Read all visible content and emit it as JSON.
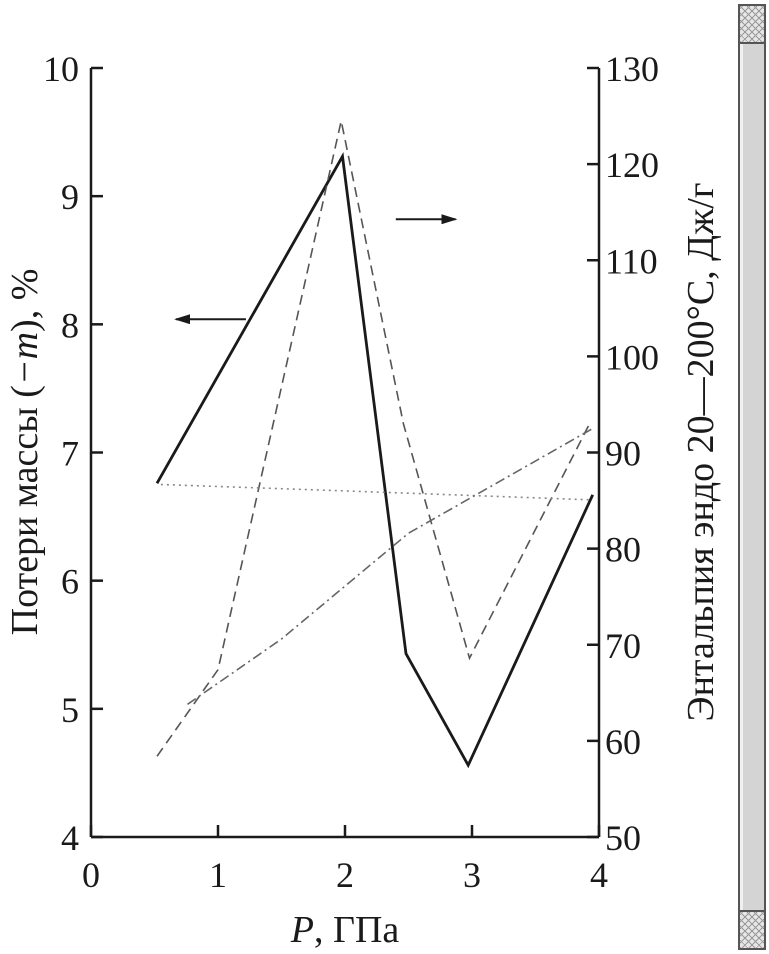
{
  "chart_data": {
    "type": "line",
    "xlabel_var": "P",
    "xlabel_unit": ", ГПа",
    "ylabel_left_pre": "Потери массы (",
    "ylabel_left_var": "−m",
    "ylabel_left_post": "), %",
    "ylabel_right": "Энтальпия эндо 20—200°С, Дж/г",
    "xlim": [
      0,
      4
    ],
    "ylim_left": [
      4,
      10
    ],
    "ylim_right": [
      50,
      130
    ],
    "x_ticks": [
      "0",
      "1",
      "2",
      "3",
      "4"
    ],
    "y_left_ticks": [
      "4",
      "5",
      "6",
      "7",
      "8",
      "9",
      "10"
    ],
    "y_right_ticks": [
      "50",
      "60",
      "70",
      "80",
      "90",
      "100",
      "110",
      "120",
      "130"
    ],
    "grid": false,
    "series": [
      {
        "axis": "left",
        "style": "solid",
        "color": "#1a1a1a",
        "x": [
          0.52,
          1.98,
          2.48,
          2.97,
          3.95
        ],
        "y": [
          6.76,
          9.31,
          5.43,
          4.56,
          6.67
        ]
      },
      {
        "axis": "right",
        "style": "dashed",
        "color": "#555555",
        "x": [
          0.52,
          1.0,
          1.97,
          2.46,
          2.98,
          3.93
        ],
        "y": [
          58.4,
          67.4,
          124.5,
          93.0,
          68.6,
          93.1
        ]
      },
      {
        "axis": "left",
        "style": "dotted",
        "color": "#888888",
        "x": [
          0.55,
          2.0,
          3.95
        ],
        "y": [
          6.75,
          6.7,
          6.63
        ]
      },
      {
        "axis": "right",
        "style": "dashdot",
        "color": "#666666",
        "x": [
          0.76,
          1.5,
          2.5,
          3.95
        ],
        "y": [
          63.8,
          70.6,
          81.6,
          92.5
        ]
      }
    ],
    "annotations": [
      {
        "type": "arrow",
        "direction": "left",
        "x_from": 1.22,
        "x_to": 0.67,
        "y": 8.04,
        "axis": "left"
      },
      {
        "type": "arrow",
        "direction": "right",
        "x_from": 2.4,
        "x_to": 2.87,
        "y": 8.82,
        "axis": "left"
      }
    ]
  }
}
